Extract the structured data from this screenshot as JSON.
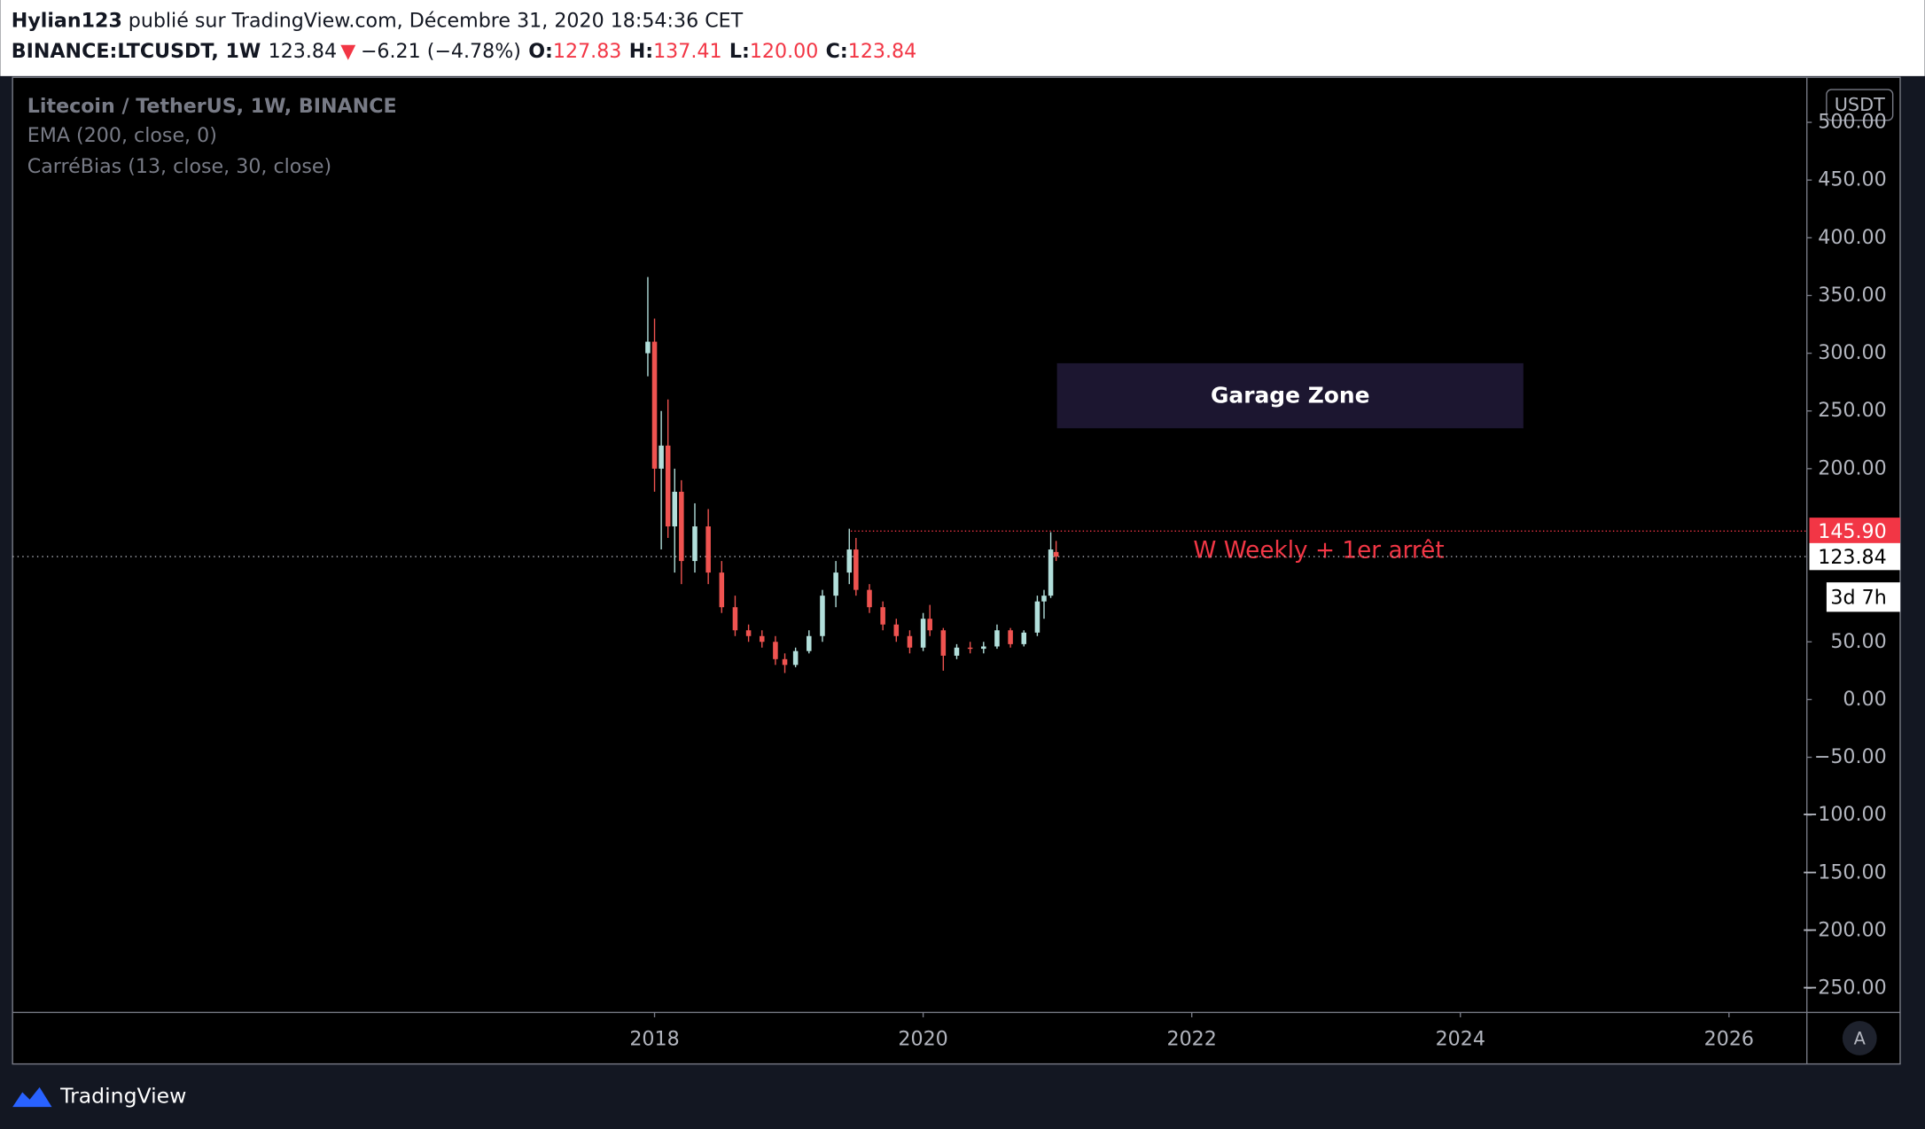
{
  "header": {
    "author": "Hylian123",
    "published": "publié sur TradingView.com, Décembre 31, 2020 18:54:36 CET",
    "symbol": "BINANCE:LTCUSDT, 1W",
    "price": "123.84",
    "arrow": "▼",
    "change": "−6.21 (−4.78%)",
    "o_label": "O:",
    "o": "127.83",
    "h_label": "H:",
    "h": "137.41",
    "l_label": "L:",
    "l": "120.00",
    "c_label": "C:",
    "c": "123.84"
  },
  "legend": {
    "title": "Litecoin / TetherUS, 1W, BINANCE",
    "ema": "EMA (200, close, 0)",
    "bias": "CarréBias (13, close, 30, close)"
  },
  "currency": "USDT",
  "scale_button": "A",
  "brand": "TradingView",
  "chart_data": {
    "type": "candlestick",
    "up_color": "#b2dfdb",
    "down_color": "#ef5350",
    "x": [
      2017.95,
      2018.0,
      2018.05,
      2018.1,
      2018.15,
      2018.2,
      2018.3,
      2018.4,
      2018.5,
      2018.6,
      2018.7,
      2018.8,
      2018.9,
      2018.97,
      2019.05,
      2019.15,
      2019.25,
      2019.35,
      2019.45,
      2019.5,
      2019.6,
      2019.7,
      2019.8,
      2019.9,
      2020.0,
      2020.05,
      2020.15,
      2020.25,
      2020.35,
      2020.45,
      2020.55,
      2020.65,
      2020.75,
      2020.85,
      2020.9,
      2020.95,
      2020.99
    ],
    "open": [
      300,
      310,
      200,
      220,
      150,
      180,
      120,
      150,
      110,
      80,
      60,
      55,
      50,
      35,
      30,
      42,
      55,
      90,
      110,
      130,
      95,
      80,
      65,
      55,
      45,
      70,
      60,
      38,
      45,
      44,
      46,
      60,
      48,
      58,
      85,
      90,
      127.83
    ],
    "high": [
      366,
      330,
      250,
      260,
      200,
      190,
      170,
      165,
      120,
      90,
      65,
      60,
      55,
      40,
      45,
      60,
      95,
      120,
      148,
      140,
      100,
      85,
      70,
      60,
      75,
      82,
      62,
      48,
      50,
      50,
      65,
      62,
      60,
      90,
      95,
      145,
      137.41
    ],
    "low": [
      280,
      180,
      130,
      140,
      110,
      100,
      110,
      100,
      75,
      55,
      50,
      45,
      30,
      23,
      28,
      40,
      50,
      80,
      100,
      90,
      75,
      60,
      50,
      40,
      42,
      55,
      25,
      35,
      40,
      40,
      44,
      45,
      46,
      55,
      70,
      88,
      120
    ],
    "close": [
      310,
      200,
      220,
      150,
      180,
      120,
      150,
      110,
      80,
      60,
      55,
      50,
      35,
      30,
      42,
      55,
      90,
      110,
      130,
      95,
      80,
      65,
      55,
      45,
      70,
      60,
      38,
      45,
      44,
      46,
      60,
      48,
      58,
      85,
      90,
      130,
      123.84
    ],
    "xlim": [
      2013.22,
      2026.58
    ],
    "xticks": [
      2018,
      2020,
      2022,
      2024,
      2026
    ],
    "ylim": [
      -271,
      539
    ],
    "yticks": [
      {
        "value": 500,
        "label": "500.00"
      },
      {
        "value": 450,
        "label": "450.00"
      },
      {
        "value": 400,
        "label": "400.00"
      },
      {
        "value": 350,
        "label": "350.00"
      },
      {
        "value": 300,
        "label": "300.00"
      },
      {
        "value": 250,
        "label": "250.00"
      },
      {
        "value": 200,
        "label": "200.00"
      },
      {
        "value": 50,
        "label": "50.00"
      },
      {
        "value": 0,
        "label": "0.00"
      },
      {
        "value": -50,
        "label": "−50.00"
      },
      {
        "value": -100,
        "label": "−100.00"
      },
      {
        "value": -150,
        "label": "−150.00"
      },
      {
        "value": -200,
        "label": "−200.00"
      },
      {
        "value": -250,
        "label": "−250.00"
      }
    ],
    "price_line": {
      "value": 145.9,
      "label": "145.90",
      "color": "#f23645"
    },
    "last_price": {
      "value": 123.84,
      "label": "123.84"
    },
    "countdown": "3d 7h",
    "zone_label": "Garage Zone",
    "annotation": "W Weekly + 1er arrêt"
  }
}
